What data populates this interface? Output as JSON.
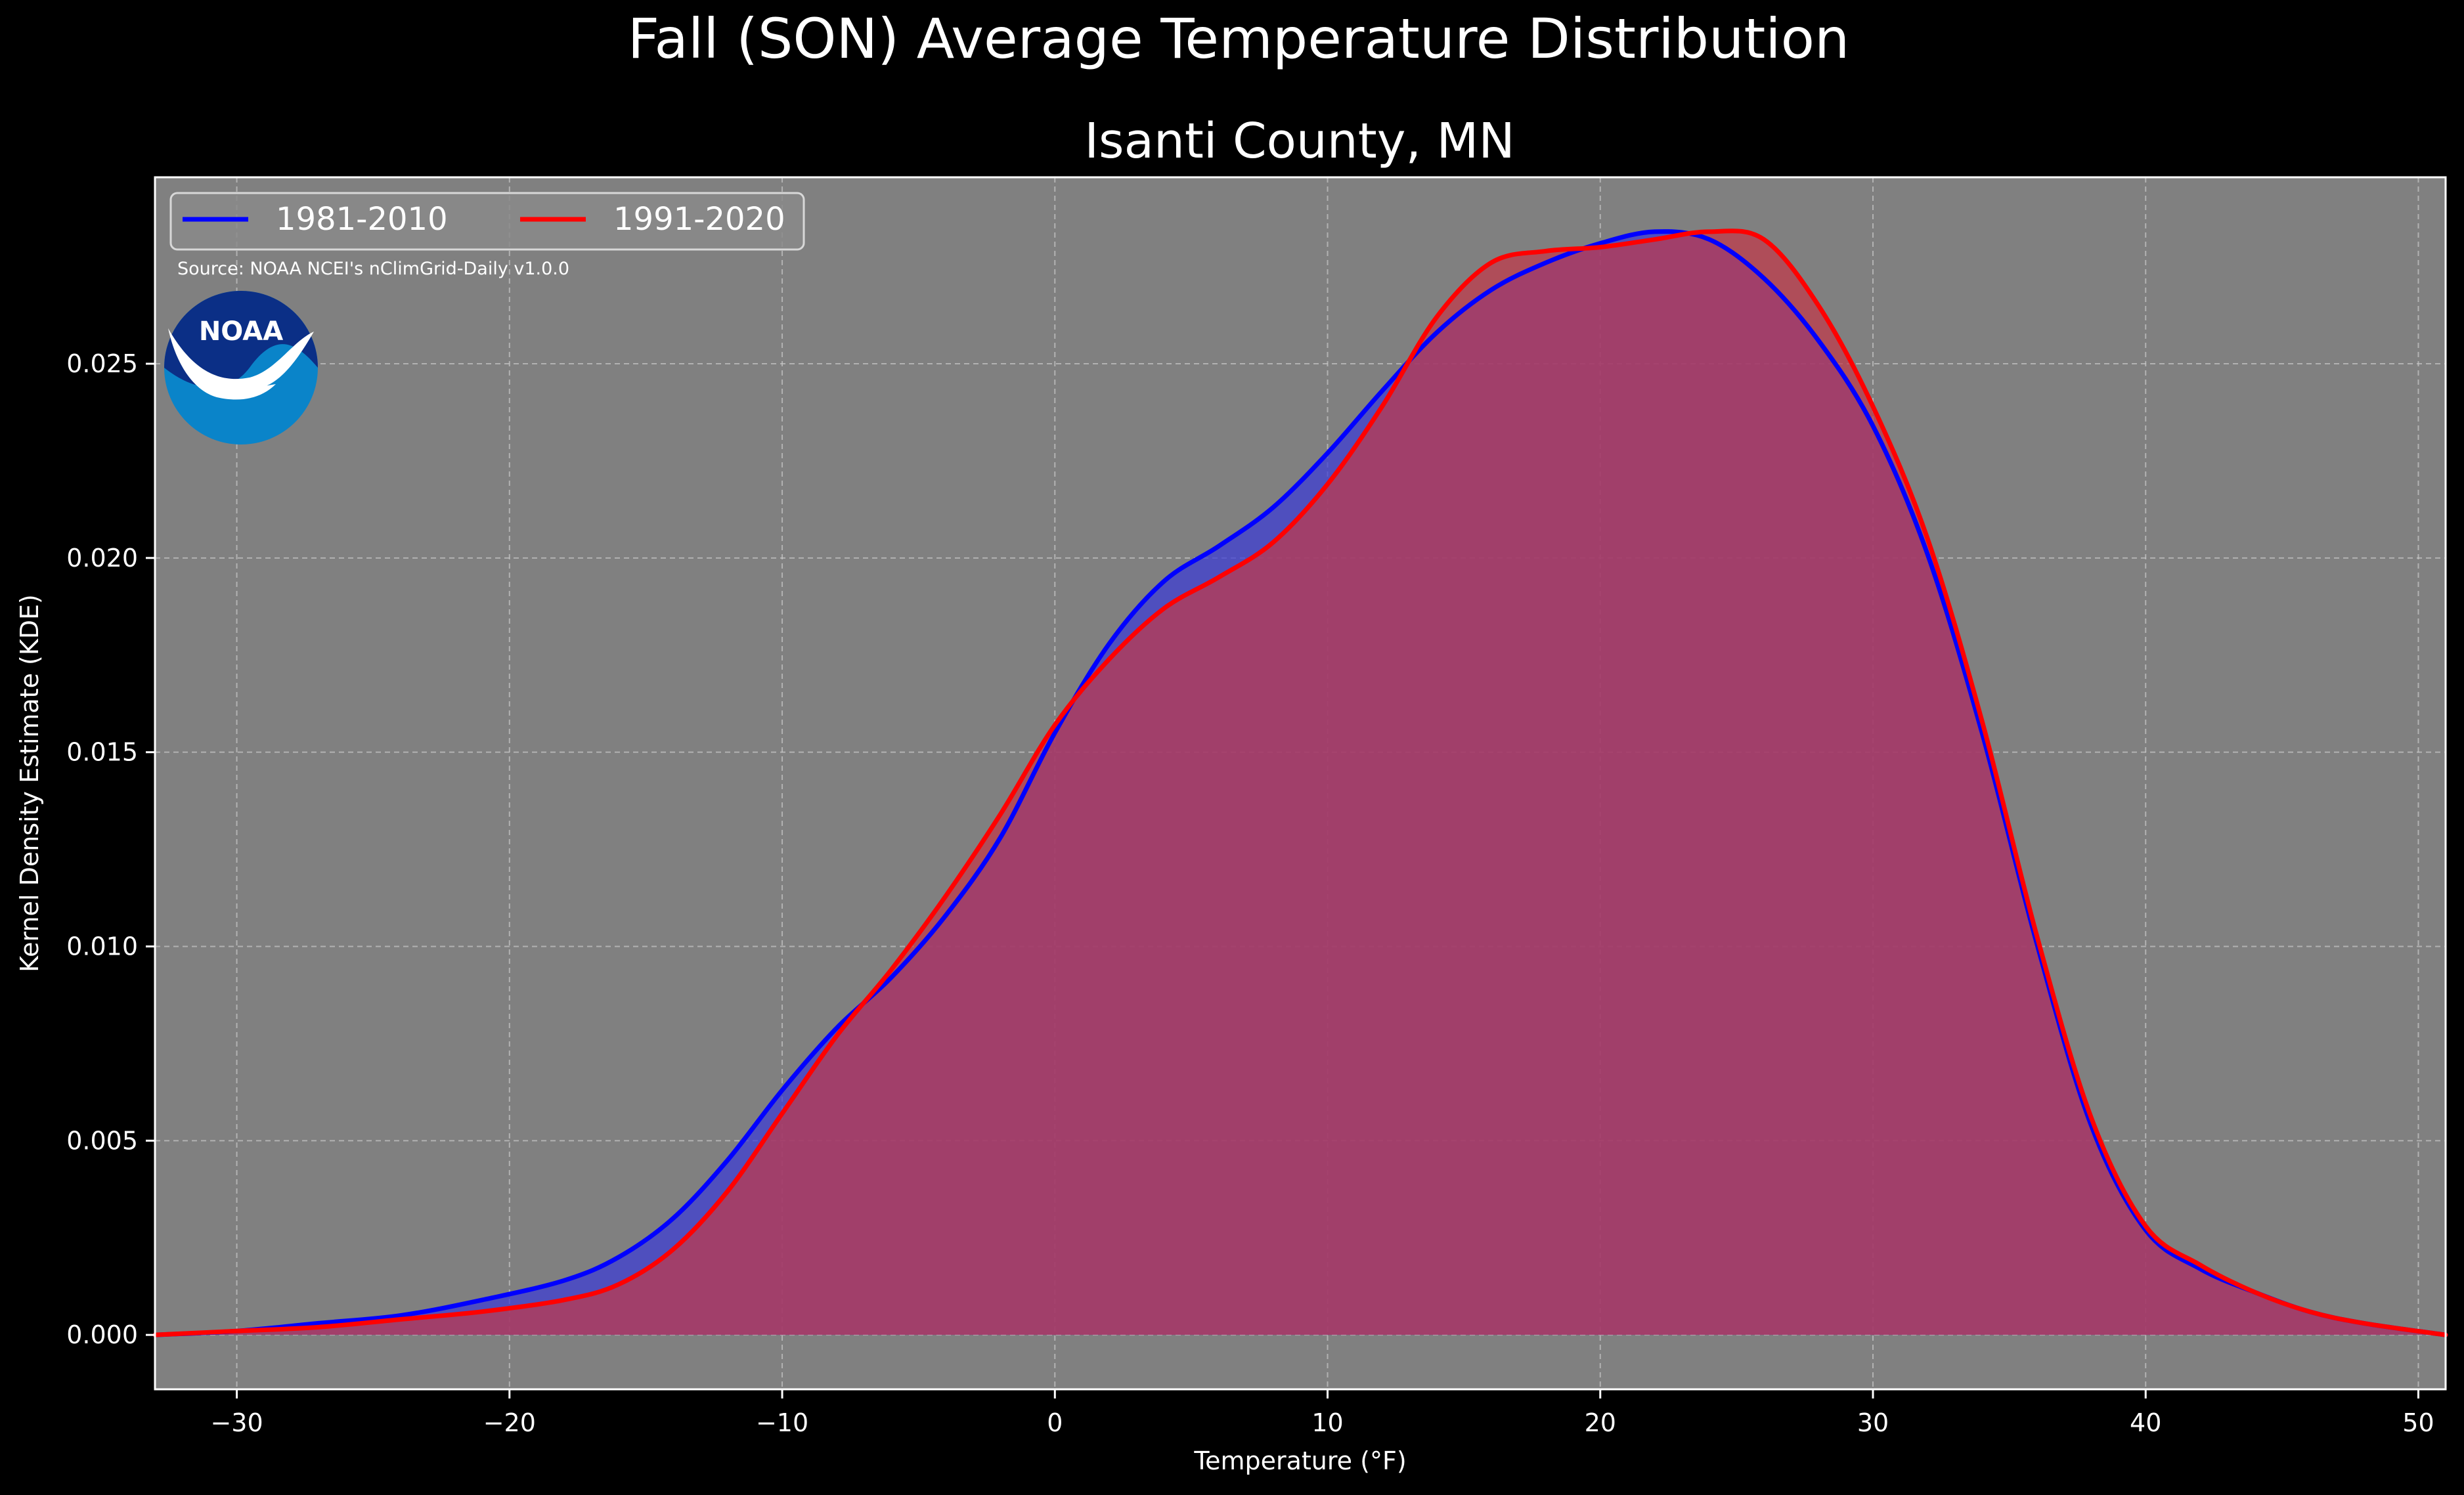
{
  "chart_data": {
    "type": "area",
    "title": "Fall (SON) Average Temperature Distribution",
    "subtitle": "Isanti County, MN",
    "xlabel": "Temperature ($^\\circ$F)",
    "xlabel_display": "Temperature (°F)",
    "ylabel": "Kernel Density Estimate (KDE)",
    "xlim": [
      -33,
      51
    ],
    "ylim": [
      -0.0014,
      0.0298
    ],
    "x_ticks": [
      -30,
      -20,
      -10,
      0,
      10,
      20,
      30,
      40,
      50
    ],
    "x_tick_labels": [
      "−30",
      "−20",
      "−10",
      "0",
      "10",
      "20",
      "30",
      "40",
      "50"
    ],
    "y_ticks": [
      0.0,
      0.005,
      0.01,
      0.015,
      0.02,
      0.025
    ],
    "y_tick_labels": [
      "0.000",
      "0.005",
      "0.010",
      "0.015",
      "0.020",
      "0.025"
    ],
    "grid": true,
    "legend_position": "top-left",
    "annotation": "Source: NOAA NCEI's nClimGrid-Daily v1.0.0",
    "logo_text": "NOAA",
    "background_color": "#000000",
    "axes_face_color": "#808080",
    "series": [
      {
        "name": "1981-2010",
        "line_color": "#0000ff",
        "fill_color": "#3b3bd6",
        "x": [
          -33,
          -30,
          -27,
          -24,
          -21,
          -18,
          -16,
          -14,
          -12,
          -10,
          -8,
          -6,
          -4,
          -2,
          0,
          2,
          4,
          6,
          8,
          10,
          12,
          14,
          16,
          18,
          20,
          22,
          24,
          26,
          28,
          30,
          32,
          34,
          36,
          38,
          40,
          42,
          44,
          46,
          48,
          51
        ],
        "values": [
          0.0,
          0.0001,
          0.0003,
          0.0005,
          0.0009,
          0.0014,
          0.002,
          0.003,
          0.0045,
          0.0063,
          0.0079,
          0.0092,
          0.0108,
          0.0128,
          0.0155,
          0.0178,
          0.0194,
          0.0203,
          0.0213,
          0.0227,
          0.0243,
          0.0258,
          0.0269,
          0.0276,
          0.0281,
          0.0284,
          0.0282,
          0.0272,
          0.0256,
          0.0234,
          0.0201,
          0.0155,
          0.0101,
          0.0054,
          0.0027,
          0.0017,
          0.0011,
          0.0006,
          0.0003,
          0.0
        ]
      },
      {
        "name": "1991-2020",
        "line_color": "#ff0000",
        "fill_color": "#c0394a",
        "x": [
          -33,
          -30,
          -27,
          -24,
          -21,
          -18,
          -16,
          -14,
          -12,
          -10,
          -8,
          -6,
          -4,
          -2,
          0,
          2,
          4,
          6,
          8,
          10,
          12,
          14,
          16,
          18,
          20,
          22,
          24,
          26,
          28,
          30,
          32,
          34,
          36,
          38,
          40,
          42,
          44,
          46,
          48,
          51
        ],
        "values": [
          0.0,
          0.0001,
          0.0002,
          0.0004,
          0.0006,
          0.0009,
          0.0013,
          0.0022,
          0.0037,
          0.0057,
          0.0077,
          0.0094,
          0.0113,
          0.0134,
          0.0157,
          0.0174,
          0.0187,
          0.0195,
          0.0204,
          0.0219,
          0.0239,
          0.0262,
          0.0276,
          0.0279,
          0.028,
          0.0282,
          0.0284,
          0.0282,
          0.0265,
          0.0239,
          0.0205,
          0.0158,
          0.0103,
          0.0056,
          0.0028,
          0.0018,
          0.0011,
          0.0006,
          0.0003,
          0.0
        ]
      }
    ]
  }
}
